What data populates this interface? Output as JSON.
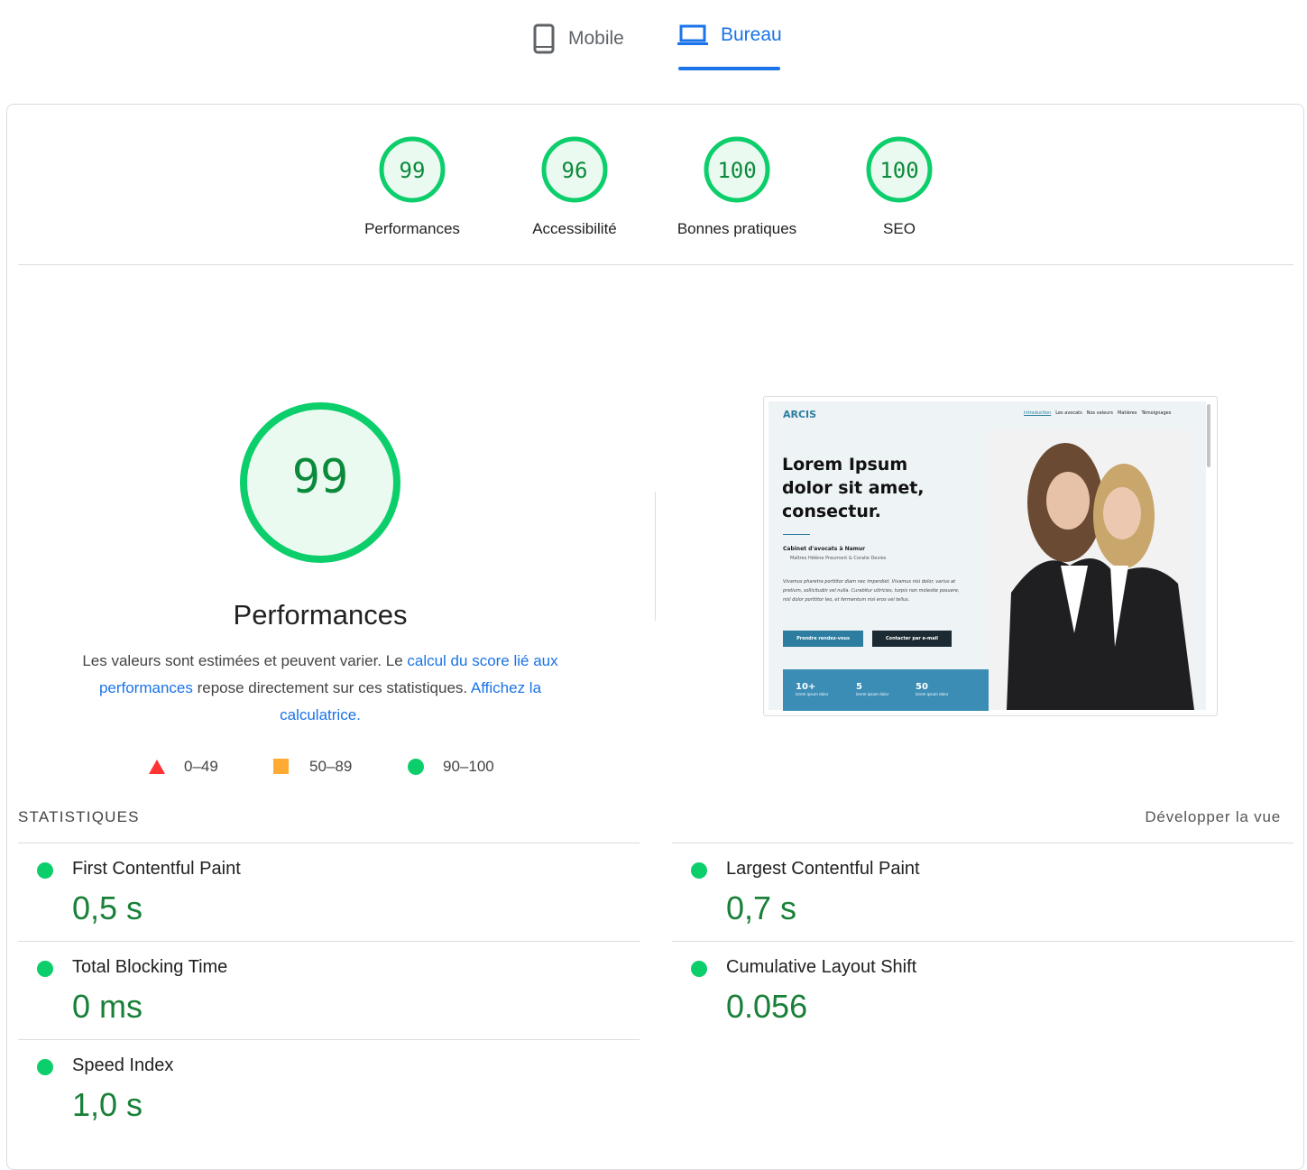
{
  "tabs": [
    "Mobile",
    "Bureau"
  ],
  "scores": [
    {
      "value": "99",
      "label": "Performances"
    },
    {
      "value": "96",
      "label": "Accessibilité"
    },
    {
      "value": "100",
      "label": "Bonnes pratiques"
    },
    {
      "value": "100",
      "label": "SEO"
    }
  ],
  "performance": {
    "score": "99",
    "title": "Performances",
    "description": {
      "text1": "Les valeurs sont estimées et peuvent varier. Le ",
      "link1": "calcul du score lié aux performances",
      "text2": " repose directement sur ces statistiques. ",
      "link2": "Affichez la calculatrice."
    },
    "legend": [
      "0–49",
      "50–89",
      "90–100"
    ]
  },
  "preview": {
    "brand": "ARCIS",
    "nav": [
      "Introduction",
      "Les avocats",
      "Nos valeurs",
      "Matières",
      "Témoignages"
    ],
    "headline": [
      "Lorem Ipsum",
      "dolor sit amet,",
      "consectur."
    ],
    "subtitle": "Cabinet d'avocats à Namur",
    "names": "Maîtres Hélène Preumont & Coralie Devies",
    "paragraph": "Vivamus pharetra porttitor diam nec imperdiet. Vivamus nisi dolor, varius at pretium, sollicitudin vel nulla. Curabitur ultricies, turpis non molestie posuere, nisl dolor porttitor leo, et fermentum nisi eros vel tellus.",
    "buttons": [
      "Prendre rendez-vous",
      "Contacter par e-mail"
    ],
    "stats": [
      {
        "value": "10+",
        "label": "lorem ipsum dolor"
      },
      {
        "value": "5",
        "label": "lorem ipsum dolor"
      },
      {
        "value": "50",
        "label": "lorem ipsum dolor"
      }
    ]
  },
  "metrics": {
    "title": "STATISTIQUES",
    "expand": "Développer la vue",
    "items": [
      {
        "label": "First Contentful Paint",
        "value": "0,5 s"
      },
      {
        "label": "Largest Contentful Paint",
        "value": "0,7 s"
      },
      {
        "label": "Total Blocking Time",
        "value": "0 ms"
      },
      {
        "label": "Cumulative Layout Shift",
        "value": "0.056"
      },
      {
        "label": "Speed Index",
        "value": "1,0 s"
      }
    ]
  }
}
